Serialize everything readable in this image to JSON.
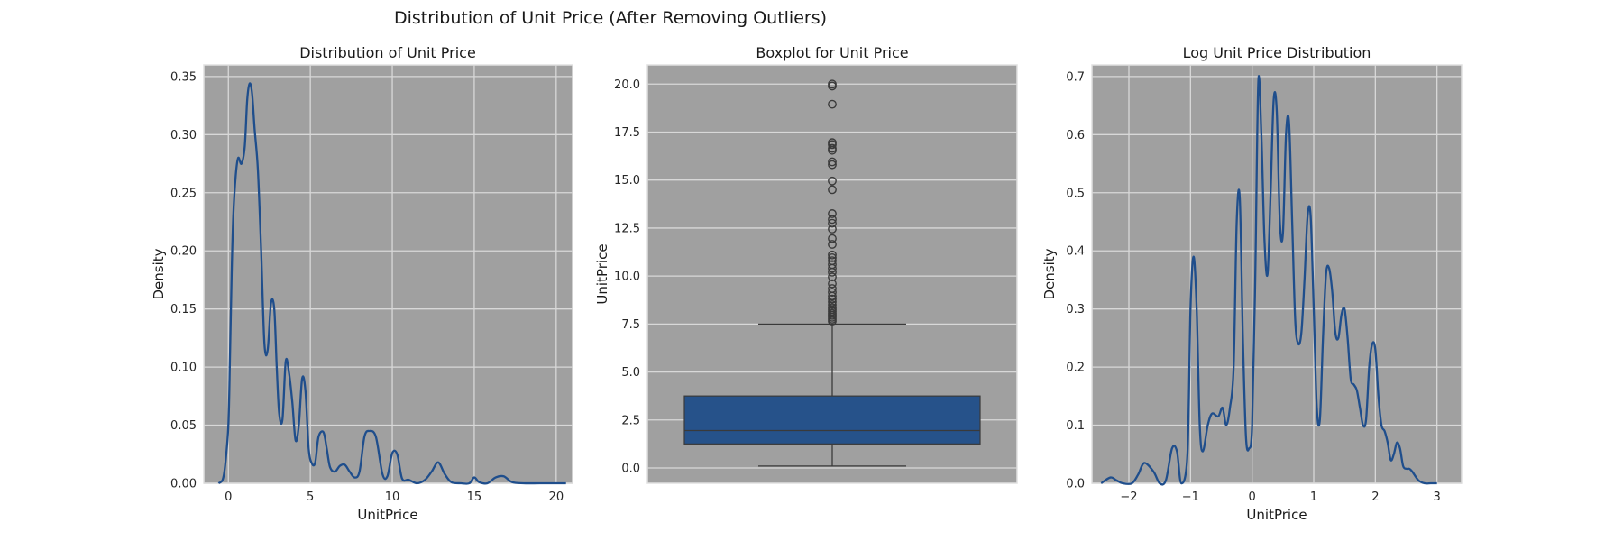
{
  "figure": {
    "suptitle": "Distribution of Unit Price (After Removing Outliers)"
  },
  "chart_data": [
    {
      "type": "line",
      "title": "Distribution of Unit Price",
      "xlabel": "UnitPrice",
      "ylabel": "Density",
      "xlim": [
        -1.5,
        21.0
      ],
      "ylim": [
        0,
        0.36
      ],
      "xticks": [
        0,
        5,
        10,
        15,
        20
      ],
      "xtick_labels": [
        "0",
        "5",
        "10",
        "15",
        "20"
      ],
      "yticks": [
        0,
        0.05,
        0.1,
        0.15,
        0.2,
        0.25,
        0.3,
        0.35
      ],
      "ytick_labels": [
        "0.00",
        "0.05",
        "0.10",
        "0.15",
        "0.20",
        "0.25",
        "0.30",
        "0.35"
      ],
      "grid": true,
      "series": [
        {
          "color": "#1f4e8c",
          "x": [
            -0.6,
            -0.35,
            -0.2,
            0.0,
            0.1,
            0.2,
            0.3,
            0.45,
            0.6,
            0.8,
            1.0,
            1.15,
            1.3,
            1.45,
            1.6,
            1.8,
            2.0,
            2.2,
            2.4,
            2.6,
            2.8,
            2.95,
            3.1,
            3.3,
            3.5,
            3.7,
            3.9,
            4.1,
            4.3,
            4.5,
            4.7,
            4.9,
            5.1,
            5.3,
            5.5,
            5.8,
            6.0,
            6.2,
            6.5,
            6.8,
            7.1,
            7.4,
            7.7,
            8.0,
            8.3,
            8.6,
            9.0,
            9.4,
            9.7,
            10.0,
            10.3,
            10.6,
            11.0,
            11.5,
            12.0,
            12.4,
            12.8,
            13.2,
            13.6,
            14.2,
            14.7,
            15.0,
            15.3,
            15.8,
            16.3,
            16.8,
            17.3,
            18.0,
            19.0,
            20.0,
            20.6
          ],
          "y": [
            0.0,
            0.003,
            0.015,
            0.05,
            0.11,
            0.18,
            0.23,
            0.265,
            0.28,
            0.275,
            0.29,
            0.33,
            0.344,
            0.335,
            0.305,
            0.27,
            0.2,
            0.12,
            0.115,
            0.155,
            0.15,
            0.1,
            0.06,
            0.055,
            0.105,
            0.095,
            0.07,
            0.037,
            0.05,
            0.09,
            0.08,
            0.03,
            0.017,
            0.018,
            0.04,
            0.044,
            0.03,
            0.014,
            0.01,
            0.015,
            0.016,
            0.01,
            0.005,
            0.01,
            0.04,
            0.045,
            0.04,
            0.008,
            0.006,
            0.026,
            0.025,
            0.004,
            0.003,
            0.0,
            0.003,
            0.01,
            0.018,
            0.008,
            0.001,
            0.0,
            0.0,
            0.005,
            0.001,
            0.0,
            0.005,
            0.006,
            0.001,
            0.0,
            0.0,
            0.0,
            0.0
          ]
        }
      ]
    },
    {
      "type": "box",
      "title": "Boxplot for Unit Price",
      "xlabel": "",
      "ylabel": "UnitPrice",
      "ylim": [
        -0.8,
        21.0
      ],
      "yticks": [
        0.0,
        2.5,
        5.0,
        7.5,
        10.0,
        12.5,
        15.0,
        17.5,
        20.0
      ],
      "ytick_labels": [
        "0.0",
        "2.5",
        "5.0",
        "7.5",
        "10.0",
        "12.5",
        "15.0",
        "17.5",
        "20.0"
      ],
      "grid": true,
      "box": {
        "color": "#26528a",
        "whisker_low": 0.1,
        "q1": 1.25,
        "median": 1.95,
        "q3": 3.75,
        "whisker_high": 7.5
      },
      "fliers": [
        7.65,
        7.75,
        7.85,
        7.95,
        8.05,
        8.15,
        8.25,
        8.35,
        8.5,
        8.65,
        8.8,
        8.95,
        9.15,
        9.35,
        9.6,
        9.95,
        10.2,
        10.4,
        10.6,
        10.8,
        10.95,
        11.1,
        11.65,
        11.95,
        12.45,
        12.75,
        12.95,
        13.25,
        14.5,
        14.95,
        15.8,
        15.95,
        16.55,
        16.65,
        16.85,
        16.95,
        18.95,
        19.9,
        20.0
      ]
    },
    {
      "type": "line",
      "title": "Log Unit Price Distribution",
      "xlabel": "UnitPrice",
      "ylabel": "Density",
      "xlim": [
        -2.6,
        3.4
      ],
      "ylim": [
        0,
        0.72
      ],
      "xticks": [
        -2,
        -1,
        0,
        1,
        2,
        3
      ],
      "xtick_labels": [
        "−2",
        "−1",
        "0",
        "1",
        "2",
        "3"
      ],
      "yticks": [
        0.0,
        0.1,
        0.2,
        0.3,
        0.4,
        0.5,
        0.6,
        0.7
      ],
      "ytick_labels": [
        "0.0",
        "0.1",
        "0.2",
        "0.3",
        "0.4",
        "0.5",
        "0.6",
        "0.7"
      ],
      "grid": true,
      "series": [
        {
          "color": "#1f4e8c",
          "x": [
            -2.45,
            -2.3,
            -2.2,
            -2.1,
            -1.95,
            -1.85,
            -1.75,
            -1.6,
            -1.5,
            -1.4,
            -1.3,
            -1.22,
            -1.15,
            -1.05,
            -1.0,
            -0.95,
            -0.9,
            -0.85,
            -0.8,
            -0.72,
            -0.65,
            -0.55,
            -0.48,
            -0.42,
            -0.36,
            -0.3,
            -0.25,
            -0.2,
            -0.15,
            -0.1,
            -0.05,
            0.0,
            0.05,
            0.1,
            0.15,
            0.2,
            0.25,
            0.3,
            0.35,
            0.4,
            0.45,
            0.5,
            0.55,
            0.6,
            0.65,
            0.7,
            0.75,
            0.8,
            0.85,
            0.9,
            0.95,
            1.0,
            1.05,
            1.1,
            1.15,
            1.2,
            1.25,
            1.3,
            1.35,
            1.4,
            1.45,
            1.5,
            1.55,
            1.6,
            1.65,
            1.7,
            1.75,
            1.8,
            1.85,
            1.9,
            1.95,
            2.0,
            2.05,
            2.1,
            2.15,
            2.2,
            2.25,
            2.3,
            2.35,
            2.4,
            2.45,
            2.5,
            2.55,
            2.6,
            2.7,
            2.8,
            2.9,
            3.0
          ],
          "y": [
            0.0,
            0.01,
            0.005,
            0.0,
            0.0,
            0.015,
            0.035,
            0.02,
            0.0,
            0.005,
            0.06,
            0.055,
            0.0,
            0.05,
            0.3,
            0.39,
            0.3,
            0.1,
            0.055,
            0.1,
            0.12,
            0.115,
            0.13,
            0.1,
            0.13,
            0.2,
            0.45,
            0.49,
            0.25,
            0.08,
            0.06,
            0.1,
            0.35,
            0.69,
            0.6,
            0.42,
            0.36,
            0.5,
            0.66,
            0.64,
            0.45,
            0.43,
            0.6,
            0.62,
            0.45,
            0.28,
            0.24,
            0.26,
            0.35,
            0.46,
            0.46,
            0.3,
            0.13,
            0.11,
            0.25,
            0.36,
            0.37,
            0.33,
            0.26,
            0.25,
            0.29,
            0.3,
            0.25,
            0.18,
            0.17,
            0.16,
            0.13,
            0.1,
            0.11,
            0.2,
            0.24,
            0.23,
            0.15,
            0.1,
            0.09,
            0.07,
            0.04,
            0.05,
            0.07,
            0.06,
            0.03,
            0.025,
            0.025,
            0.02,
            0.005,
            0.0,
            0.0,
            0.0
          ]
        }
      ]
    }
  ]
}
